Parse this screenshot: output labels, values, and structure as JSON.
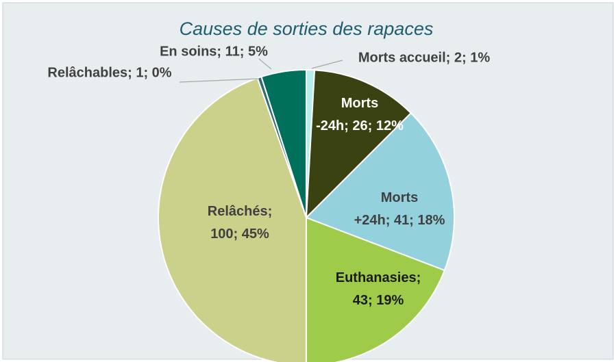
{
  "chart_data": {
    "type": "pie",
    "title": "Causes de sorties des rapaces",
    "values": [
      2,
      26,
      41,
      43,
      100,
      1,
      11
    ],
    "value_labels": [
      "Morts accueil; 2; 1%",
      "Morts -24h; 26; 12%",
      "Morts +24h; 41; 18%",
      "Euthanasies; 43; 19%",
      "Relâchés; 100; 45%",
      "Relâchables; 1; 0%",
      "En soins; 11; 5%"
    ],
    "colors": [
      "#b5efe9",
      "#3a4212",
      "#93d1dc",
      "#9fcc48",
      "#cbd08b",
      "#2f6e70",
      "#00705b"
    ]
  }
}
